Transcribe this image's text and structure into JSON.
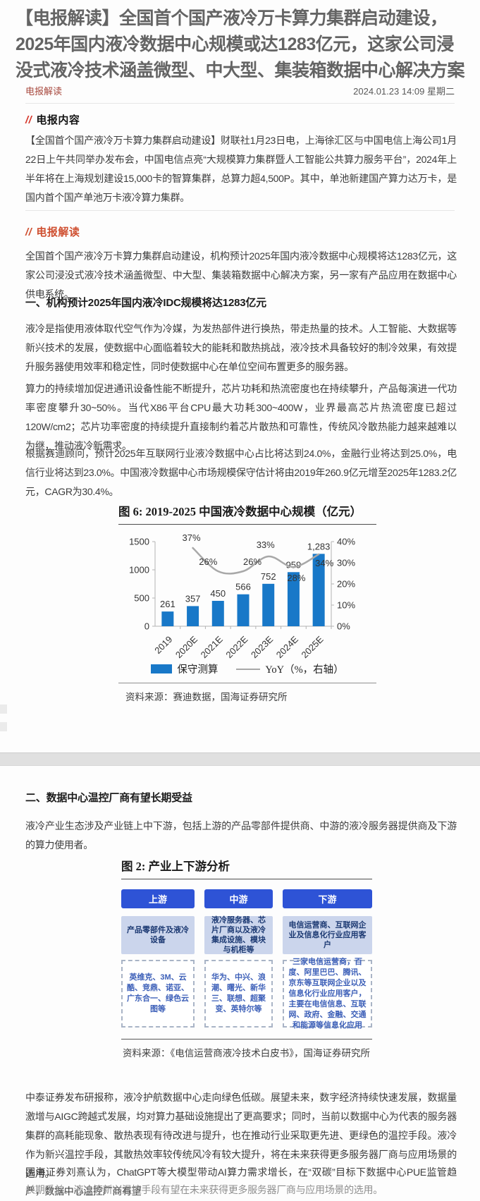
{
  "page": {
    "title_lines": [
      "【电报解读】全国首个国产液冷万卡算力集群启动建设，",
      "2025年国内液冷数据中心规模或达1283亿元，这家公司浸",
      "没式液冷技术涵盖微型、中大型、集装箱数据中心解决方案"
    ],
    "source_label": "电报解读",
    "datetime": "2024.01.23 14:09 星期二"
  },
  "telegraph": {
    "marker": "//",
    "title": "电报内容",
    "body": "【全国首个国产液冷万卡算力集群启动建设】财联社1月23日电，上海徐汇区与中国电信上海公司1月22日上午共同举办发布会，中国电信点亮“大规模算力集群暨人工智能公共算力服务平台”，2024年上半年将在上海规划建设15,000卡的智算集群，总算力超4,500P。其中，单池新建国产算力达万卡，是国内首个国产单池万卡液冷算力集群。"
  },
  "interpretation": {
    "marker": "//",
    "title": "电报解读",
    "lead": "全国首个国产液冷万卡算力集群启动建设，机构预计2025年国内液冷数据中心规模将达1283亿元，这家公司浸没式液冷技术涵盖微型、中大型、集装箱数据中心解决方案，另一家有产品应用在数据中心供电系统。",
    "h1": "一、机构预计2025年国内液冷IDC规模将达1283亿元",
    "p1": "液冷是指使用液体取代空气作为冷媒，为发热部件进行换热，带走热量的技术。人工智能、大数据等新兴技术的发展，使数据中心面临着较大的能耗和散热挑战，液冷技术具备较好的制冷效果，有效提升服务器使用效率和稳定性，同时使数据中心在单位空间布置更多的服务器。",
    "p2": "算力的持续增加促进通讯设备性能不断提升，芯片功耗和热流密度也在持续攀升，产品每演进一代功率密度攀升30~50%。当代X86平台CPU最大功耗300~400W，业界最高芯片热流密度已超过120W/cm2；芯片功率密度的持续提升直接制约着芯片散热和可靠性，传统风冷散热能力越来越难以为继，推动液冷新需求。",
    "p3": "根据赛迪顾问，预计2025年互联网行业液冷数据中心占比将达到24.0%，金融行业将达到25.0%，电信行业将达到23.0%。中国液冷数据中心市场规模保守估计将由2019年260.9亿元增至2025年1283.2亿元，CAGR为30.4%。"
  },
  "chart_data": {
    "type": "bar",
    "title": "图 6: 2019-2025 中国液冷数据中心规模（亿元）",
    "categories": [
      "2019",
      "2020E",
      "2021E",
      "2022E",
      "2023E",
      "2024E",
      "2025E"
    ],
    "series": [
      {
        "name": "保守测算",
        "type": "bar",
        "axis": "left",
        "color": "#1878c8",
        "values": [
          261,
          357,
          450,
          566,
          752,
          959,
          1283
        ],
        "labels": [
          "261",
          "357",
          "450",
          "566",
          "752",
          "959",
          "1,283"
        ]
      },
      {
        "name": "YoY（%，右轴）",
        "type": "line",
        "axis": "right",
        "color": "#a8a8a8",
        "values": [
          null,
          37,
          26,
          26,
          33,
          28,
          34
        ],
        "labels": [
          "",
          "37%",
          "26%",
          "26%",
          "33%",
          "28%",
          "34%"
        ],
        "label_offsets": [
          null,
          {
            "dx": -2,
            "dy": -10
          },
          {
            "dx": -14,
            "dy": -9
          },
          {
            "dx": 13,
            "dy": -9
          },
          {
            "dx": -4,
            "dy": -12
          },
          {
            "dx": 4,
            "dy": 20
          },
          {
            "dx": 8,
            "dy": 17
          }
        ]
      }
    ],
    "left_axis": {
      "ticks": [
        0,
        500,
        1000,
        1500
      ],
      "max": 1500
    },
    "right_axis": {
      "ticks": [
        "0%",
        "10%",
        "20%",
        "30%",
        "40%"
      ],
      "max": 40
    },
    "legend_position": "bottom",
    "grid": false,
    "source": "资料来源：赛迪数据，国海证券研究所"
  },
  "section2": {
    "h2": "二、数据中心温控厂商有望长期受益",
    "p1": "液冷产业生态涉及产业链上中下游，包括上游的产品零部件提供商、中游的液冷服务器提供商及下游的算力使用者。",
    "p2": "中泰证券发布研报称，液冷护航数据中心走向绿色低碳。展望未来，数字经济持续快速发展，数据量激增与AIGC跨越式发展，均对算力基础设施提出了更高要求；同时，当前以数据中心为代表的服务器集群的高耗能现象、散热表现有待改进与提升，也在推动行业采取更先进、更绿色的温控手段。液冷作为新兴温控手段，其散热效率较传统风冷有较大提升，将在未来获得更多服务器厂商与应用场景的选用。",
    "p3": "国海证券刘熹认为，ChatGPT等大模型带动AI算力需求增长，在“双碳”目标下数据中心PUE监管趋严，数据中心温控厂商有望",
    "p3_clipped": "长期受益。液冷等新兴温控手段有望在未来获得更多服务器厂商与应用场景的选用。"
  },
  "figure2": {
    "title": "图 2: 产业上下游分析",
    "columns": [
      {
        "header": "上游",
        "mid": "产品零部件及液冷设备",
        "detail": "英维克、3M、云酷、竞鼎、诺亚、广东合一、绿色云图等"
      },
      {
        "header": "中游",
        "mid": "液冷服务器、芯片厂商以及液冷集成设施、模块与机柜等",
        "detail": "华为、中兴、浪潮、曙光、新华三、联想、超聚变、英特尔等"
      },
      {
        "header": "下游",
        "mid": "电信运营商、互联网企业及信息化行业应用客户",
        "detail": "三家电信运营商，百度、阿里巴巴、腾讯、京东等互联网企业以及信息化行业应用客户，主要在电信信息、互联网、政府、金融、交通和能源等信息化应用"
      }
    ],
    "source": "资料来源：《电信运营商液冷技术白皮书》，国海证券研究所"
  }
}
